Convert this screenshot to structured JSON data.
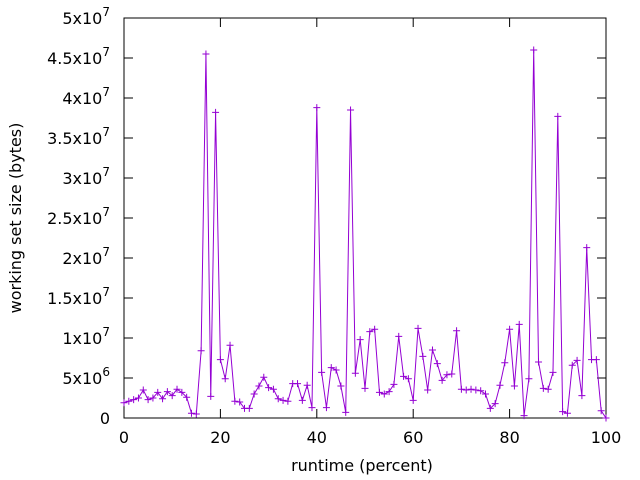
{
  "chart_data": {
    "type": "line",
    "xlabel": "runtime (percent)",
    "ylabel": "working set size (bytes)",
    "xlim": [
      0,
      100
    ],
    "ylim": [
      0,
      50000000
    ],
    "grid": false,
    "x_ticks": [
      {
        "value": 0,
        "label": "0"
      },
      {
        "value": 20,
        "label": "20"
      },
      {
        "value": 40,
        "label": "40"
      },
      {
        "value": 60,
        "label": "60"
      },
      {
        "value": 80,
        "label": "80"
      },
      {
        "value": 100,
        "label": "100"
      }
    ],
    "y_ticks": [
      {
        "value": 0,
        "mantissa": "0",
        "exponent": ""
      },
      {
        "value": 5000000,
        "mantissa": "5x10",
        "exponent": "6"
      },
      {
        "value": 10000000,
        "mantissa": "1x10",
        "exponent": "7"
      },
      {
        "value": 15000000,
        "mantissa": "1.5x10",
        "exponent": "7"
      },
      {
        "value": 20000000,
        "mantissa": "2x10",
        "exponent": "7"
      },
      {
        "value": 25000000,
        "mantissa": "2.5x10",
        "exponent": "7"
      },
      {
        "value": 30000000,
        "mantissa": "3x10",
        "exponent": "7"
      },
      {
        "value": 35000000,
        "mantissa": "3.5x10",
        "exponent": "7"
      },
      {
        "value": 40000000,
        "mantissa": "4x10",
        "exponent": "7"
      },
      {
        "value": 45000000,
        "mantissa": "4.5x10",
        "exponent": "7"
      },
      {
        "value": 50000000,
        "mantissa": "5x10",
        "exponent": "7"
      }
    ],
    "series": [
      {
        "color": "#9400d3",
        "marker": "plus",
        "x": [
          0,
          1,
          2,
          3,
          4,
          5,
          6,
          7,
          8,
          9,
          10,
          11,
          12,
          13,
          14,
          15,
          16,
          17,
          18,
          19,
          20,
          21,
          22,
          23,
          24,
          25,
          26,
          27,
          28,
          29,
          30,
          31,
          32,
          33,
          34,
          35,
          36,
          37,
          38,
          39,
          40,
          41,
          42,
          43,
          44,
          45,
          46,
          47,
          48,
          49,
          50,
          51,
          52,
          53,
          54,
          55,
          56,
          57,
          58,
          59,
          60,
          61,
          62,
          63,
          64,
          65,
          66,
          67,
          68,
          69,
          70,
          71,
          72,
          73,
          74,
          75,
          76,
          77,
          78,
          79,
          80,
          81,
          82,
          83,
          84,
          85,
          86,
          87,
          88,
          89,
          90,
          91,
          92,
          93,
          94,
          95,
          96,
          97,
          98,
          99,
          100
        ],
        "y": [
          1900000,
          2100000,
          2300000,
          2500000,
          3500000,
          2300000,
          2500000,
          3200000,
          2400000,
          3300000,
          2800000,
          3600000,
          3200000,
          2600000,
          600000,
          500000,
          8400000,
          45500000,
          2700000,
          38200000,
          7300000,
          4900000,
          9100000,
          2100000,
          2000000,
          1200000,
          1200000,
          3000000,
          4000000,
          5100000,
          3800000,
          3600000,
          2400000,
          2200000,
          2100000,
          4300000,
          4300000,
          2200000,
          4100000,
          1300000,
          38800000,
          5700000,
          1300000,
          6300000,
          6000000,
          4000000,
          700000,
          38500000,
          5600000,
          9800000,
          3700000,
          10800000,
          11100000,
          3200000,
          3000000,
          3300000,
          4200000,
          10200000,
          5200000,
          4900000,
          2200000,
          11200000,
          7700000,
          3500000,
          8500000,
          6800000,
          4700000,
          5400000,
          5500000,
          10900000,
          3600000,
          3500000,
          3600000,
          3500000,
          3400000,
          3000000,
          1200000,
          1800000,
          4100000,
          6900000,
          11100000,
          4000000,
          11700000,
          300000,
          4900000,
          46000000,
          7000000,
          3700000,
          3600000,
          5700000,
          37700000,
          800000,
          600000,
          6600000,
          7200000,
          2800000,
          21300000,
          7300000,
          7300000,
          900000,
          0
        ]
      }
    ]
  }
}
